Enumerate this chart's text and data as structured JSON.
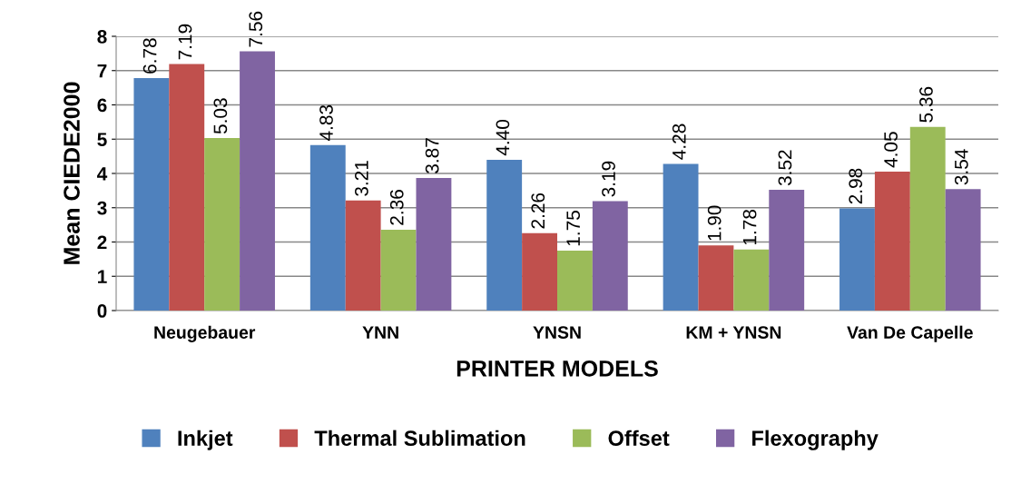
{
  "chart_data": {
    "type": "bar",
    "xlabel": "PRINTER MODELS",
    "ylabel": "Mean CIEDE2000",
    "categories": [
      "Neugebauer",
      "YNN",
      "YNSN",
      "KM + YNSN",
      "Van De Capelle"
    ],
    "series": [
      {
        "name": "Inkjet",
        "color": "#4f81bd",
        "values": [
          6.78,
          4.83,
          4.4,
          4.28,
          2.98
        ],
        "value_labels": [
          "6.78",
          "4.83",
          "4.40",
          "4.28",
          "2.98"
        ]
      },
      {
        "name": "Thermal Sublimation",
        "color": "#c0504d",
        "values": [
          7.19,
          3.21,
          2.26,
          1.9,
          4.05
        ],
        "value_labels": [
          "7.19",
          "3.21",
          "2.26",
          "1.90",
          "4.05"
        ]
      },
      {
        "name": "Offset",
        "color": "#9bbb59",
        "values": [
          5.03,
          2.36,
          1.75,
          1.78,
          5.36
        ],
        "value_labels": [
          "5.03",
          "2.36",
          "1.75",
          "1.78",
          "5.36"
        ]
      },
      {
        "name": "Flexography",
        "color": "#8064a2",
        "values": [
          7.56,
          3.87,
          3.19,
          3.52,
          3.54
        ],
        "value_labels": [
          "7.56",
          "3.87",
          "3.19",
          "3.52",
          "3.54"
        ]
      }
    ],
    "ylim": [
      0,
      8
    ],
    "yticks": [
      0,
      1,
      2,
      3,
      4,
      5,
      6,
      7,
      8
    ],
    "grid": "y",
    "legend": "bottom"
  }
}
